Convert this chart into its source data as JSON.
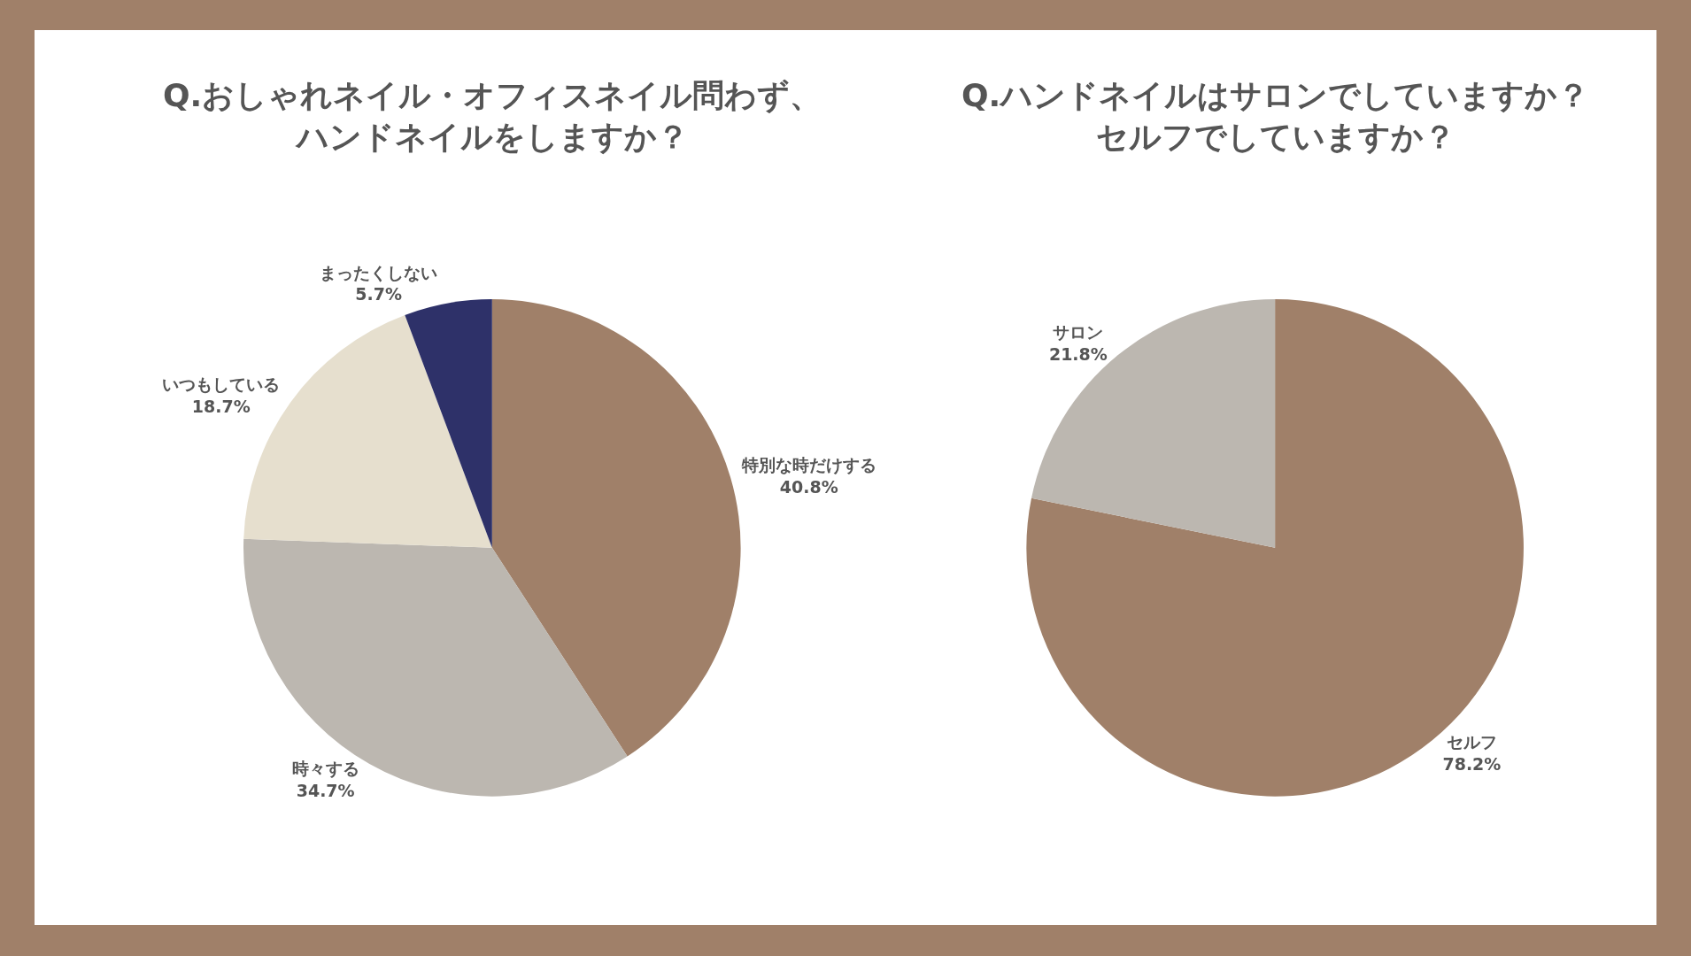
{
  "chart_data": [
    {
      "type": "pie",
      "title": "Q.おしゃれネイル・オフィスネイル問わず、ハンドネイルをしますか？",
      "categories": [
        "特別な時だけする",
        "時々する",
        "いつもしている",
        "まったくしない"
      ],
      "values": [
        40.8,
        34.7,
        18.7,
        5.7
      ],
      "value_labels": [
        "40.8%",
        "34.7%",
        "18.7%",
        "5.7%"
      ],
      "colors": [
        "#a08069",
        "#bcb7b0",
        "#e6dfce",
        "#2e3169"
      ]
    },
    {
      "type": "pie",
      "title": "Q.ハンドネイルはサロンでしていますか？セルフでしていますか？",
      "categories": [
        "セルフ",
        "サロン"
      ],
      "values": [
        78.2,
        21.8
      ],
      "value_labels": [
        "78.2%",
        "21.8%"
      ],
      "colors": [
        "#a08069",
        "#bcb7b0"
      ]
    }
  ]
}
